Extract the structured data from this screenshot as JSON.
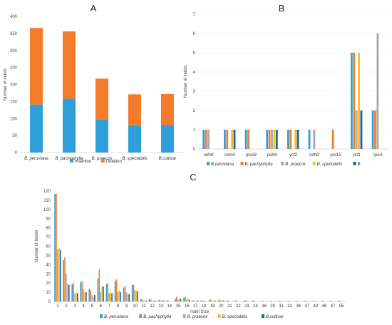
{
  "colors": {
    "blue": "#2e9fd9",
    "orange": "#f47b2a",
    "gray": "#a9a9a9",
    "yellow": "#f7c01e",
    "darkblue": "#1f5fa8"
  },
  "chart_data": [
    {
      "panel": "A",
      "type": "bar",
      "stacked": true,
      "ylabel": "Number of indels",
      "ylim": [
        0,
        400
      ],
      "yticks": [
        0,
        50,
        100,
        150,
        200,
        250,
        300,
        350,
        400
      ],
      "categories": [
        "B. peruviana",
        "B. pachyphylla",
        "B. praecox",
        "B. spectabilis",
        "B.cultivar"
      ],
      "series": [
        {
          "name": "Insertion",
          "color": "#2e9fd9",
          "values": [
            141,
            158,
            97,
            80,
            81
          ]
        },
        {
          "name": "Deletion",
          "color": "#f47b2a",
          "values": [
            225,
            198,
            120,
            91,
            91
          ]
        }
      ],
      "legend": "bottom"
    },
    {
      "panel": "B",
      "type": "bar",
      "ylabel": "Number of indels",
      "ylim": [
        0,
        7
      ],
      "yticks": [
        0,
        1,
        2,
        3,
        4,
        5,
        6,
        7
      ],
      "categories": [
        "ndhK",
        "cemA",
        "rps18",
        "psbN",
        "ycf2",
        "ndhD",
        "rps15",
        "ycf1",
        "rpoA"
      ],
      "series": [
        {
          "name": "B.peruviana",
          "color": "#2e9fd9",
          "values": [
            1,
            1,
            1,
            1,
            1,
            1,
            0,
            5,
            2
          ]
        },
        {
          "name": "B. pachyphylla",
          "color": "#f47b2a",
          "values": [
            1,
            1,
            1,
            1,
            1,
            0,
            1,
            5,
            2
          ]
        },
        {
          "name": "B. praecox",
          "color": "#a9a9a9",
          "values": [
            1,
            0,
            0,
            1,
            0,
            1,
            0,
            2,
            6
          ]
        },
        {
          "name": "B. spectabilis",
          "color": "#f7c01e",
          "values": [
            0,
            1,
            0,
            1,
            1,
            0,
            0,
            5,
            0
          ]
        },
        {
          "name": "B.",
          "color": "#1f5fa8",
          "values": [
            0,
            1,
            0,
            1,
            1,
            0,
            0,
            2,
            0
          ]
        }
      ],
      "legend": "bottom"
    },
    {
      "panel": "C",
      "type": "bar",
      "ylabel": "Number of Indels",
      "xlabel": "Indel Size",
      "ylim": [
        0,
        120
      ],
      "yticks": [
        0,
        10,
        20,
        30,
        40,
        50,
        60,
        70,
        80,
        90,
        100,
        110,
        120
      ],
      "categories": [
        "1",
        "2",
        "3",
        "4",
        "5",
        "6",
        "7",
        "8",
        "9",
        "10",
        "11",
        "12",
        "13",
        "14",
        "15",
        "16",
        "17",
        "18",
        "19",
        "20",
        "21",
        "22",
        "23",
        "24",
        "26",
        "29",
        "31",
        "32",
        "36",
        "37",
        "43",
        "46",
        "47",
        "55"
      ],
      "series": [
        {
          "name": "B. peruviana",
          "color": "#2e9fd9",
          "values": [
            117,
            45,
            19,
            21,
            14,
            25,
            19,
            22,
            15,
            18,
            3,
            3,
            1,
            1,
            3,
            4,
            1,
            1,
            2,
            1,
            1,
            1,
            1,
            1,
            0,
            0,
            0,
            0,
            0,
            0,
            0,
            0,
            0,
            1
          ]
        },
        {
          "name": "B. pachyphylla",
          "color": "#f47b2a",
          "values": [
            117,
            48,
            20,
            22,
            12,
            35,
            20,
            24,
            17,
            18,
            2,
            2,
            2,
            1,
            5,
            5,
            1,
            1,
            2,
            2,
            1,
            1,
            1,
            1,
            1,
            1,
            1,
            1,
            1,
            1,
            1,
            1,
            1,
            1
          ]
        },
        {
          "name": "B. praecox",
          "color": "#a9a9a9",
          "values": [
            57,
            30,
            9,
            14,
            7,
            10,
            9,
            10,
            10,
            12,
            1,
            1,
            1,
            0,
            2,
            2,
            0,
            1,
            0,
            1,
            0,
            0,
            1,
            0,
            0,
            0,
            0,
            0,
            0,
            0,
            0,
            0,
            0,
            0
          ]
        },
        {
          "name": "B. spectabilis",
          "color": "#f7c01e",
          "values": [
            58,
            20,
            10,
            10,
            5,
            17,
            10,
            12,
            8,
            12,
            1,
            1,
            1,
            0,
            3,
            3,
            1,
            0,
            1,
            1,
            0,
            0,
            0,
            0,
            0,
            0,
            0,
            0,
            0,
            0,
            0,
            0,
            0,
            0
          ]
        },
        {
          "name": "B.cultivar",
          "color": "#1f5fa8",
          "values": [
            56,
            18,
            9,
            10,
            7,
            16,
            9,
            10,
            8,
            11,
            1,
            1,
            1,
            0,
            3,
            2,
            1,
            0,
            1,
            1,
            0,
            0,
            0,
            0,
            0,
            0,
            0,
            0,
            0,
            0,
            0,
            0,
            0,
            0
          ]
        }
      ],
      "legend": "bottom"
    }
  ]
}
